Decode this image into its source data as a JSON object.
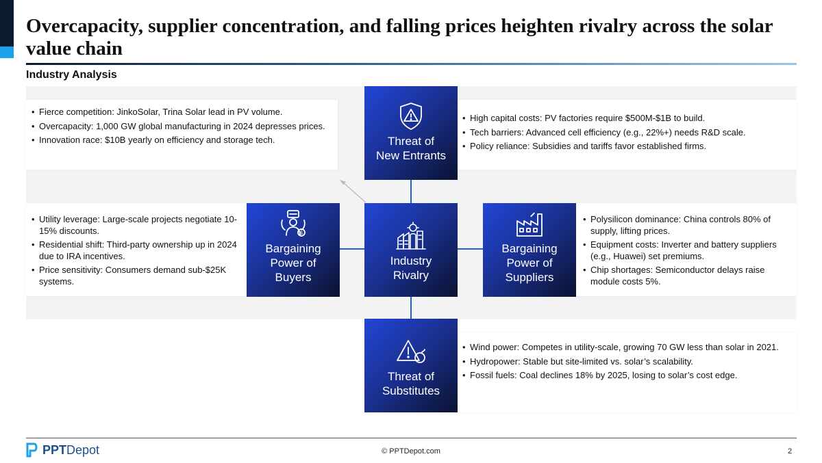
{
  "header": {
    "title": "Overcapacity, supplier concentration, and falling prices heighten rivalry across the solar value chain",
    "subtitle": "Industry Analysis"
  },
  "forces": {
    "new_entrants": {
      "label": "Threat of\nNew Entrants",
      "icon": "shield-warning-icon"
    },
    "buyers": {
      "label": "Bargaining\nPower of\nBuyers",
      "icon": "shopping-customer-icon"
    },
    "rivalry": {
      "label": "Industry\nRivalry",
      "icon": "industry-factory-icon"
    },
    "suppliers": {
      "label": "Bargaining\nPower of\nSuppliers",
      "icon": "factory-icon"
    },
    "substitutes": {
      "label": "Threat of\nSubstitutes",
      "icon": "warning-triangle-icon"
    }
  },
  "panels": {
    "rivalry": [
      "Fierce competition: JinkoSolar, Trina Solar lead in PV volume.",
      "Overcapacity: 1,000 GW global manufacturing in 2024 depresses prices.",
      "Innovation race: $10B yearly on efficiency and storage tech."
    ],
    "new_entrants": [
      "High capital costs: PV factories require $500M-$1B to build.",
      "Tech barriers: Advanced cell efficiency (e.g., 22%+) needs R&D scale.",
      "Policy reliance: Subsidies and tariffs favor established firms."
    ],
    "buyers": [
      "Utility leverage: Large-scale projects negotiate 10-15% discounts.",
      "Residential shift: Third-party ownership up in 2024 due to IRA incentives.",
      "Price sensitivity: Consumers demand sub-$25K systems."
    ],
    "suppliers": [
      "Polysilicon dominance: China controls 80% of supply, lifting prices.",
      "Equipment costs: Inverter and battery suppliers (e.g., Huawei) set premiums.",
      "Chip shortages: Semiconductor delays raise module costs 5%."
    ],
    "substitutes": [
      "Wind power: Competes in utility-scale, growing 70 GW less than solar in 2021.",
      "Hydropower: Stable but site-limited vs. solar’s scalability.",
      "Fossil fuels: Coal declines 18% by 2025, losing to solar’s cost edge."
    ]
  },
  "footer": {
    "logo_text_bold": "PPT",
    "logo_text_rest": "Depot",
    "copyright": "© PPTDepot.com",
    "page_number": "2"
  },
  "colors": {
    "accent_dark": "#0b1a2e",
    "accent_blue": "#1aa3e8",
    "box_gradient_start": "#2146d8",
    "box_gradient_end": "#0a1230",
    "connector": "#1e63d6"
  }
}
